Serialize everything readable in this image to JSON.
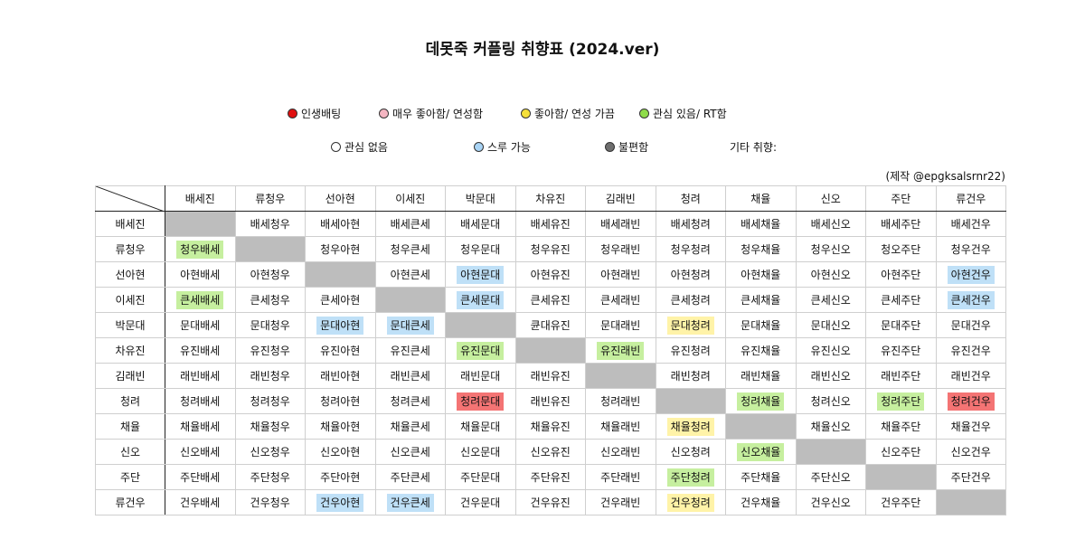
{
  "title": "데못죽 커플링 취향표 (2024.ver)",
  "credit": "(제작 @epgksalsrnr22)",
  "legend": {
    "row1": [
      {
        "label": "인생배팅",
        "color": "#e01010"
      },
      {
        "label": "매우 좋아함/ 연성함",
        "color": "#f4b6c2"
      },
      {
        "label": "좋아함/ 연성 가끔",
        "color": "#f5e03a"
      },
      {
        "label": "관심 있음/ RT함",
        "color": "#8fdc4a"
      }
    ],
    "row2": [
      {
        "label": "관심 없음",
        "color": "#ffffff"
      },
      {
        "label": "스루 가능",
        "color": "#a9d4f5"
      },
      {
        "label": "불편함",
        "color": "#6e6e6e"
      },
      {
        "label": "기타 취향:",
        "color": ""
      }
    ]
  },
  "columns": [
    "배세진",
    "류청우",
    "선아현",
    "이세진",
    "박문대",
    "차유진",
    "김래빈",
    "청려",
    "채율",
    "신오",
    "주단",
    "류건우"
  ],
  "rows": [
    {
      "name": "배세진",
      "cells": [
        {
          "t": ""
        },
        {
          "t": "배세청우"
        },
        {
          "t": "배세아현"
        },
        {
          "t": "배세큰세"
        },
        {
          "t": "배세문대"
        },
        {
          "t": "배세유진"
        },
        {
          "t": "배세래빈"
        },
        {
          "t": "배세청려"
        },
        {
          "t": "배세채율"
        },
        {
          "t": "배세신오"
        },
        {
          "t": "배세주단"
        },
        {
          "t": "배세건우"
        }
      ]
    },
    {
      "name": "류청우",
      "cells": [
        {
          "t": "청우배세",
          "c": "green"
        },
        {
          "t": ""
        },
        {
          "t": "청우아현"
        },
        {
          "t": "청우큰세"
        },
        {
          "t": "청우문대"
        },
        {
          "t": "청우유진"
        },
        {
          "t": "청우래빈"
        },
        {
          "t": "청우청려"
        },
        {
          "t": "청우채율"
        },
        {
          "t": "청우신오"
        },
        {
          "t": "청오주단"
        },
        {
          "t": "청우건우"
        }
      ]
    },
    {
      "name": "선아현",
      "cells": [
        {
          "t": "아현배세"
        },
        {
          "t": "아현청우"
        },
        {
          "t": ""
        },
        {
          "t": "아현큰세"
        },
        {
          "t": "아현문대",
          "c": "blue"
        },
        {
          "t": "아현유진"
        },
        {
          "t": "아현래빈"
        },
        {
          "t": "아현청려"
        },
        {
          "t": "아현채율"
        },
        {
          "t": "아현신오"
        },
        {
          "t": "아현주단"
        },
        {
          "t": "아현건우",
          "c": "blue"
        }
      ]
    },
    {
      "name": "이세진",
      "cells": [
        {
          "t": "큰세배세",
          "c": "green"
        },
        {
          "t": "큰세청우"
        },
        {
          "t": "큰세아현"
        },
        {
          "t": ""
        },
        {
          "t": "큰세문대",
          "c": "blue"
        },
        {
          "t": "큰세유진"
        },
        {
          "t": "큰세래빈"
        },
        {
          "t": "큰세청려"
        },
        {
          "t": "큰세채율"
        },
        {
          "t": "큰세신오"
        },
        {
          "t": "큰세주단"
        },
        {
          "t": "큰세건우",
          "c": "blue"
        }
      ]
    },
    {
      "name": "박문대",
      "cells": [
        {
          "t": "문대배세"
        },
        {
          "t": "문대청우"
        },
        {
          "t": "문대아현",
          "c": "blue"
        },
        {
          "t": "문대큰세",
          "c": "blue"
        },
        {
          "t": ""
        },
        {
          "t": "큔대유진"
        },
        {
          "t": "문대래빈"
        },
        {
          "t": "문대청려",
          "c": "yellow"
        },
        {
          "t": "문대채율"
        },
        {
          "t": "문대신오"
        },
        {
          "t": "문대주단"
        },
        {
          "t": "문대건우"
        }
      ]
    },
    {
      "name": "차유진",
      "cells": [
        {
          "t": "유진배세"
        },
        {
          "t": "유진청우"
        },
        {
          "t": "유진아현"
        },
        {
          "t": "유진큰세"
        },
        {
          "t": "유진문대",
          "c": "green"
        },
        {
          "t": ""
        },
        {
          "t": "유진래빈",
          "c": "green"
        },
        {
          "t": "유진청려"
        },
        {
          "t": "유진채율"
        },
        {
          "t": "유진신오"
        },
        {
          "t": "유진주단"
        },
        {
          "t": "유진건우"
        }
      ]
    },
    {
      "name": "김래빈",
      "cells": [
        {
          "t": "래빈배세"
        },
        {
          "t": "래빈청우"
        },
        {
          "t": "래빈아현"
        },
        {
          "t": "래빈큰세"
        },
        {
          "t": "래빈문대"
        },
        {
          "t": "래빈유진"
        },
        {
          "t": ""
        },
        {
          "t": "래빈청려"
        },
        {
          "t": "래빈채율"
        },
        {
          "t": "래빈신오"
        },
        {
          "t": "래빈주단"
        },
        {
          "t": "래빈건우"
        }
      ]
    },
    {
      "name": "청려",
      "cells": [
        {
          "t": "청려배세"
        },
        {
          "t": "청려청우"
        },
        {
          "t": "청려아현"
        },
        {
          "t": "청려큰세"
        },
        {
          "t": "청려문대",
          "c": "red"
        },
        {
          "t": "래빈유진"
        },
        {
          "t": "청려래빈"
        },
        {
          "t": ""
        },
        {
          "t": "청려채율",
          "c": "green"
        },
        {
          "t": "청려신오"
        },
        {
          "t": "청려주단",
          "c": "green"
        },
        {
          "t": "청려건우",
          "c": "red"
        }
      ]
    },
    {
      "name": "채율",
      "cells": [
        {
          "t": "채율배세"
        },
        {
          "t": "채율청우"
        },
        {
          "t": "채율아현"
        },
        {
          "t": "채율큰세"
        },
        {
          "t": "채율문대"
        },
        {
          "t": "채율유진"
        },
        {
          "t": "채율래빈"
        },
        {
          "t": "채율청려",
          "c": "yellow"
        },
        {
          "t": ""
        },
        {
          "t": "채율신오"
        },
        {
          "t": "채율주단"
        },
        {
          "t": "채율건우"
        }
      ]
    },
    {
      "name": "신오",
      "cells": [
        {
          "t": "신오배세"
        },
        {
          "t": "신오청우"
        },
        {
          "t": "신오아현"
        },
        {
          "t": "신오큰세"
        },
        {
          "t": "신오문대"
        },
        {
          "t": "신오유진"
        },
        {
          "t": "신오래빈"
        },
        {
          "t": "신오청려"
        },
        {
          "t": "신오채율",
          "c": "green"
        },
        {
          "t": ""
        },
        {
          "t": "신오주단"
        },
        {
          "t": "신오건우"
        }
      ]
    },
    {
      "name": "주단",
      "cells": [
        {
          "t": "주단배세"
        },
        {
          "t": "주단청우"
        },
        {
          "t": "주단아현"
        },
        {
          "t": "주단큰세"
        },
        {
          "t": "주단문대"
        },
        {
          "t": "주단유진"
        },
        {
          "t": "주단래빈"
        },
        {
          "t": "주단청려",
          "c": "green"
        },
        {
          "t": "주단채율"
        },
        {
          "t": "주단신오"
        },
        {
          "t": ""
        },
        {
          "t": "주단건우"
        }
      ]
    },
    {
      "name": "류건우",
      "cells": [
        {
          "t": "건우배세"
        },
        {
          "t": "건우청우"
        },
        {
          "t": "건우아현",
          "c": "blue"
        },
        {
          "t": "건우큰세",
          "c": "blue"
        },
        {
          "t": "건우문대"
        },
        {
          "t": "건우유진"
        },
        {
          "t": "건우래빈"
        },
        {
          "t": "건우청려",
          "c": "yellow"
        },
        {
          "t": "건우채율"
        },
        {
          "t": "건우신오"
        },
        {
          "t": "건우주단"
        },
        {
          "t": ""
        }
      ]
    }
  ]
}
